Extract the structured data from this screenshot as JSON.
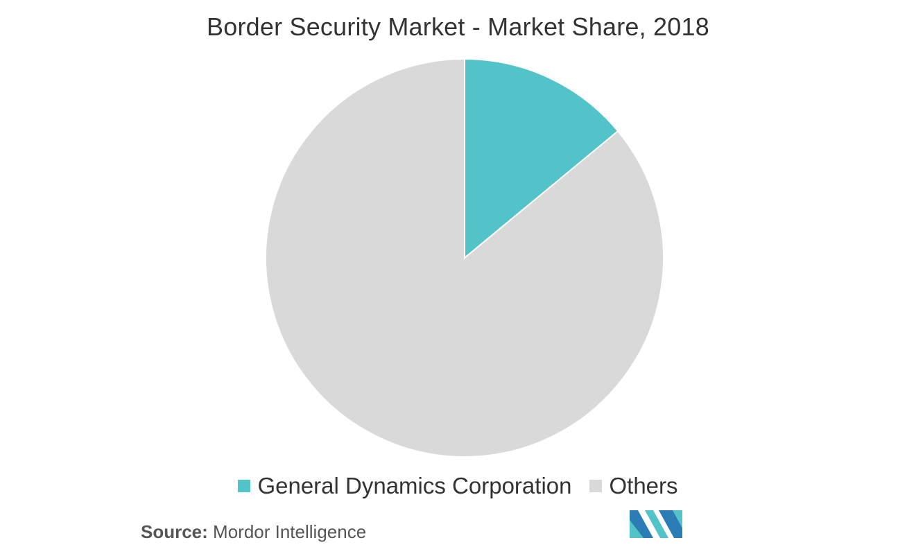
{
  "chart_data": {
    "type": "pie",
    "title": "Border Security Market - Market Share, 2018",
    "legend_position": "bottom",
    "series": [
      {
        "name": "General Dynamics Corporation",
        "value": 14,
        "color": "#52c3c9"
      },
      {
        "name": "Others",
        "value": 86,
        "color": "#d9d9d9"
      }
    ]
  },
  "source": {
    "label": "Source:",
    "text": "Mordor Intelligence"
  },
  "logo": {
    "icon": "mordor-intelligence-logo",
    "colors": [
      "#2a7db5",
      "#52c3c9"
    ]
  }
}
